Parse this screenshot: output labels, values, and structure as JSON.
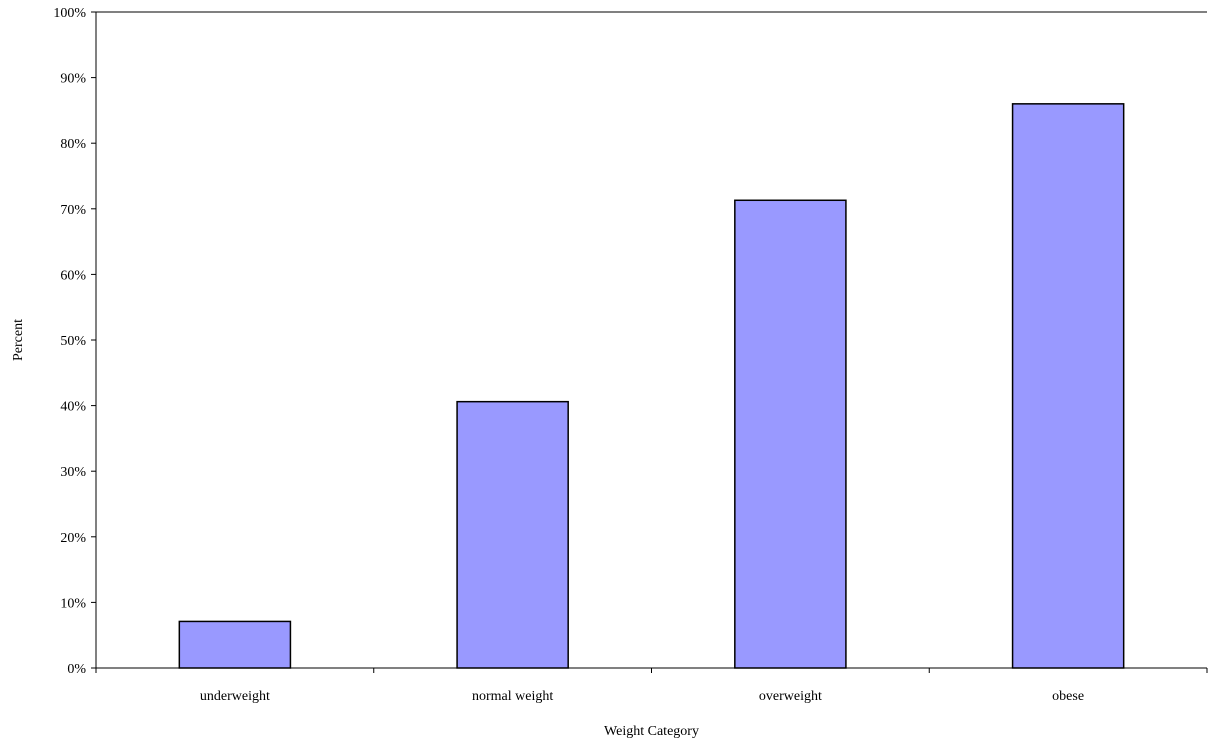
{
  "chart_data": {
    "type": "bar",
    "title": "",
    "xlabel": "Weight Category",
    "ylabel": "Percent",
    "categories": [
      "underweight",
      "normal weight",
      "overweight",
      "obese"
    ],
    "values": [
      7.1,
      40.6,
      71.3,
      86.0
    ],
    "ylim": [
      0,
      100
    ],
    "yticks": [
      "0%",
      "10%",
      "20%",
      "30%",
      "40%",
      "50%",
      "60%",
      "70%",
      "80%",
      "90%",
      "100%"
    ],
    "grid": false,
    "legend": "none",
    "bar_color": "#9999ff",
    "bar_border_color": "#000000"
  }
}
